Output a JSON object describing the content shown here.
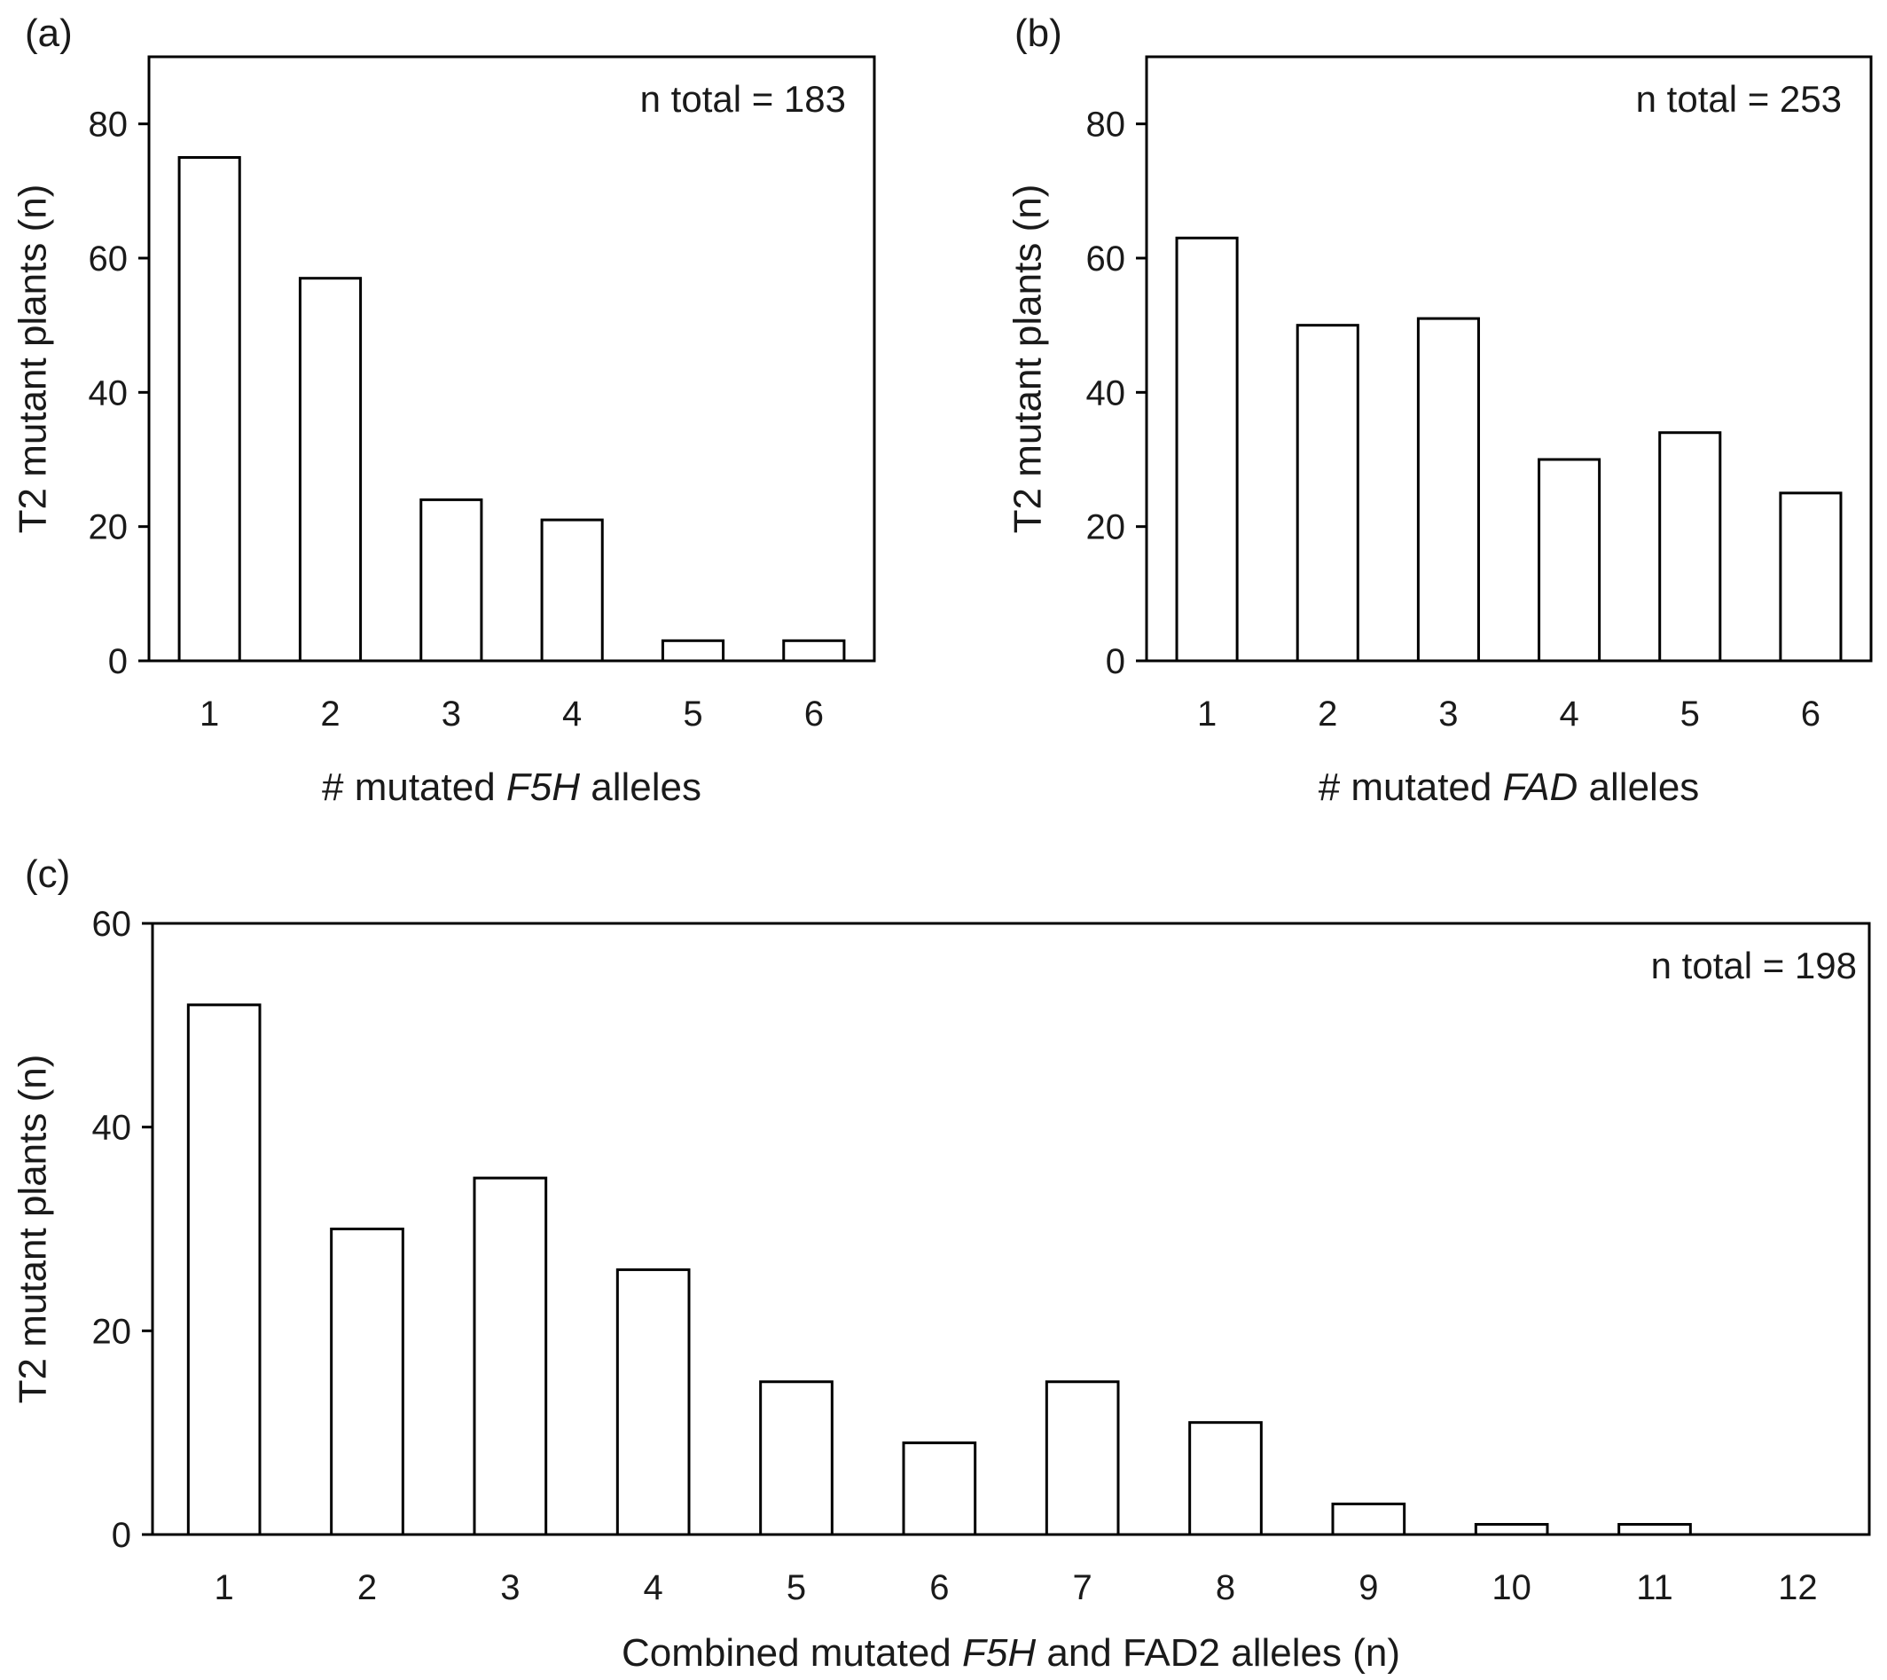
{
  "chart_data": [
    {
      "panel": "(a)",
      "type": "bar",
      "categories": [
        "1",
        "2",
        "3",
        "4",
        "5",
        "6"
      ],
      "values": [
        75,
        57,
        24,
        21,
        3,
        3
      ],
      "xlabel_parts": [
        {
          "text": "# mutated ",
          "italic": false
        },
        {
          "text": "F5H",
          "italic": true
        },
        {
          "text": " alleles",
          "italic": false
        }
      ],
      "ylabel": "T2 mutant plants (n)",
      "ylim": [
        0,
        90
      ],
      "yticks": [
        0,
        20,
        40,
        60,
        80
      ],
      "annotation": "n total = 183",
      "grid": false,
      "colors": {
        "bar_fill": "#ffffff",
        "bar_stroke": "#000000"
      }
    },
    {
      "panel": "(b)",
      "type": "bar",
      "categories": [
        "1",
        "2",
        "3",
        "4",
        "5",
        "6"
      ],
      "values": [
        63,
        50,
        51,
        30,
        34,
        25
      ],
      "xlabel_parts": [
        {
          "text": "# mutated ",
          "italic": false
        },
        {
          "text": "FAD",
          "italic": true
        },
        {
          "text": " alleles",
          "italic": false
        }
      ],
      "ylabel": "T2 mutant plants (n)",
      "ylim": [
        0,
        90
      ],
      "yticks": [
        0,
        20,
        40,
        60,
        80
      ],
      "annotation": "n total = 253",
      "grid": false,
      "colors": {
        "bar_fill": "#ffffff",
        "bar_stroke": "#000000"
      }
    },
    {
      "panel": "(c)",
      "type": "bar",
      "categories": [
        "1",
        "2",
        "3",
        "4",
        "5",
        "6",
        "7",
        "8",
        "9",
        "10",
        "11",
        "12"
      ],
      "values": [
        52,
        30,
        35,
        26,
        15,
        9,
        15,
        11,
        3,
        1,
        1,
        0
      ],
      "xlabel_parts": [
        {
          "text": "Combined mutated ",
          "italic": false
        },
        {
          "text": "F5H",
          "italic": true
        },
        {
          "text": " and FAD2 alleles (n)",
          "italic": false
        }
      ],
      "ylabel": "T2 mutant plants (n)",
      "ylim": [
        0,
        60
      ],
      "yticks": [
        0,
        20,
        40,
        60
      ],
      "annotation": "n total = 198",
      "grid": false,
      "colors": {
        "bar_fill": "#ffffff",
        "bar_stroke": "#000000"
      }
    }
  ]
}
